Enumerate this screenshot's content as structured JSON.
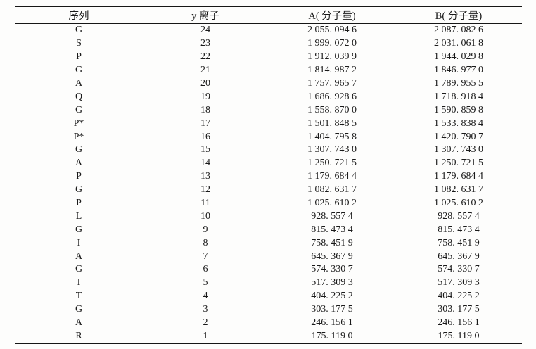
{
  "table": {
    "headers": {
      "sequence": "序列",
      "y_ion": "y 离子",
      "a_mass": "A( 分子量)",
      "b_mass": "B( 分子量)"
    },
    "rows": [
      {
        "seq": "G",
        "y": "24",
        "a": "2 055. 094 6",
        "b": "2 087. 082 6"
      },
      {
        "seq": "S",
        "y": "23",
        "a": "1 999. 072 0",
        "b": "2 031. 061 8"
      },
      {
        "seq": "P",
        "y": "22",
        "a": "1 912. 039 9",
        "b": "1 944. 029 8"
      },
      {
        "seq": "G",
        "y": "21",
        "a": "1 814. 987 2",
        "b": "1 846. 977 0"
      },
      {
        "seq": "A",
        "y": "20",
        "a": "1 757. 965 7",
        "b": "1 789. 955 5"
      },
      {
        "seq": "Q",
        "y": "19",
        "a": "1 686. 928 6",
        "b": "1 718. 918 4"
      },
      {
        "seq": "G",
        "y": "18",
        "a": "1 558. 870 0",
        "b": "1 590. 859 8"
      },
      {
        "seq": "P*",
        "y": "17",
        "a": "1 501. 848 5",
        "b": "1 533. 838 4"
      },
      {
        "seq": "P*",
        "y": "16",
        "a": "1 404. 795 8",
        "b": "1 420. 790 7"
      },
      {
        "seq": "G",
        "y": "15",
        "a": "1 307. 743 0",
        "b": "1 307. 743 0"
      },
      {
        "seq": "A",
        "y": "14",
        "a": "1 250. 721 5",
        "b": "1 250. 721 5"
      },
      {
        "seq": "P",
        "y": "13",
        "a": "1 179. 684 4",
        "b": "1 179. 684 4"
      },
      {
        "seq": "G",
        "y": "12",
        "a": "1 082. 631 7",
        "b": "1 082. 631 7"
      },
      {
        "seq": "P",
        "y": "11",
        "a": "1 025. 610 2",
        "b": "1 025. 610 2"
      },
      {
        "seq": "L",
        "y": "10",
        "a": "928. 557 4",
        "b": "928. 557 4"
      },
      {
        "seq": "G",
        "y": "9",
        "a": "815. 473 4",
        "b": "815. 473 4"
      },
      {
        "seq": "I",
        "y": "8",
        "a": "758. 451 9",
        "b": "758. 451 9"
      },
      {
        "seq": "A",
        "y": "7",
        "a": "645. 367 9",
        "b": "645. 367 9"
      },
      {
        "seq": "G",
        "y": "6",
        "a": "574. 330 7",
        "b": "574. 330 7"
      },
      {
        "seq": "I",
        "y": "5",
        "a": "517. 309 3",
        "b": "517. 309 3"
      },
      {
        "seq": "T",
        "y": "4",
        "a": "404. 225 2",
        "b": "404. 225 2"
      },
      {
        "seq": "G",
        "y": "3",
        "a": "303. 177 5",
        "b": "303. 177 5"
      },
      {
        "seq": "A",
        "y": "2",
        "a": "246. 156 1",
        "b": "246. 156 1"
      },
      {
        "seq": "R",
        "y": "1",
        "a": "175. 119 0",
        "b": "175. 119 0"
      }
    ]
  },
  "colors": {
    "rule": "#161616",
    "text": "#1a1a1a",
    "background": "#fdfdfc"
  }
}
